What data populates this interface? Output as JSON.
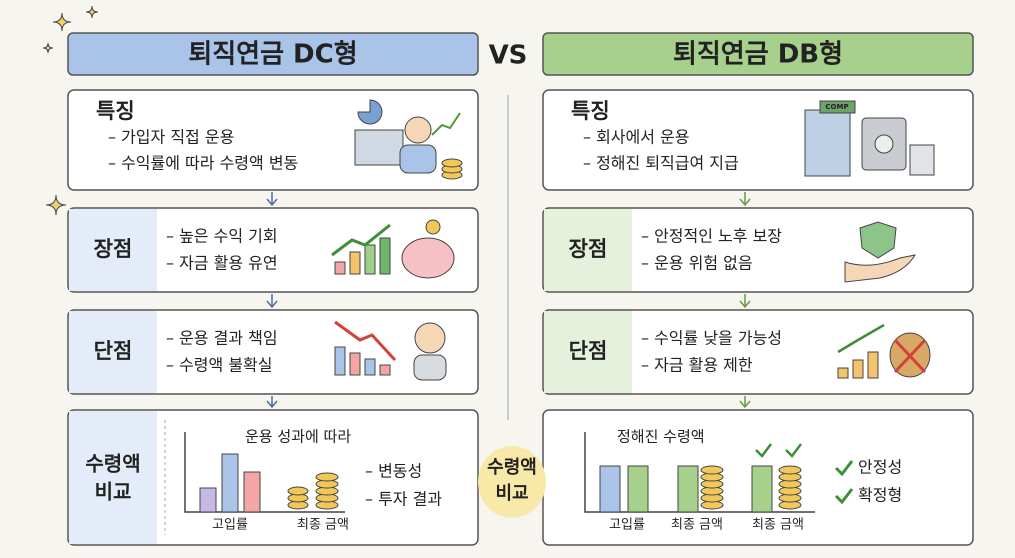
{
  "vs": "VS",
  "center_label": [
    "수령액",
    "비교"
  ],
  "columns": [
    {
      "title": "퇴직연금 DC형",
      "sections": [
        {
          "label": "특징",
          "items": [
            "– 가입자 직접 운용",
            "– 수익률에 따라 수령액 변동"
          ]
        },
        {
          "label": "장점",
          "items": [
            "– 높은 수익 기회",
            "– 자금 활용 유연"
          ]
        },
        {
          "label": "단점",
          "items": [
            "– 운용 결과 책임",
            "– 수령액 불확실"
          ]
        }
      ],
      "comparison": {
        "label": [
          "수령액",
          "비교"
        ],
        "annotation": "운용 성과에 따라",
        "x_labels": [
          "고입률",
          "최종 금액"
        ],
        "notes": [
          "– 변동성",
          "– 투자 결과"
        ]
      }
    },
    {
      "title": "퇴직연금 DB형",
      "icon_label": "COMP",
      "sections": [
        {
          "label": "특징",
          "items": [
            "– 회사에서 운용",
            "– 정해진 퇴직급여 지급"
          ]
        },
        {
          "label": "장점",
          "items": [
            "– 안정적인 노후 보장",
            "– 운용 위험 없음"
          ]
        },
        {
          "label": "단점",
          "items": [
            "– 수익률 낮을 가능성",
            "– 자금 활용 제한"
          ]
        }
      ],
      "comparison": {
        "annotation": "정해진 수령액",
        "x_labels": [
          "고입률",
          "최종 금액",
          "최종 금액"
        ],
        "notes": [
          "안정성",
          "확정형"
        ]
      }
    }
  ]
}
